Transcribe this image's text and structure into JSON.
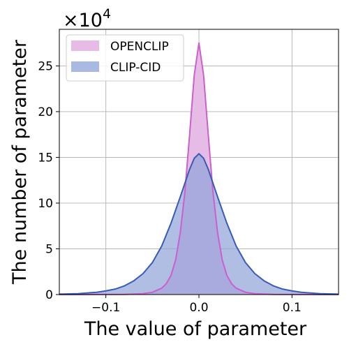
{
  "chart_data": {
    "type": "area",
    "title": "",
    "xlabel": "The value of parameter",
    "ylabel": "The number of parameter",
    "y_multiplier_text": "×10",
    "y_multiplier_exp": "4",
    "xlim": [
      -0.15,
      0.15
    ],
    "ylim": [
      0,
      29
    ],
    "x_ticks": [
      -0.1,
      0.0,
      0.1
    ],
    "x_tick_labels": [
      "−0.1",
      "0.0",
      "0.1"
    ],
    "y_ticks": [
      0,
      5,
      10,
      15,
      20,
      25
    ],
    "y_tick_labels": [
      "0",
      "5",
      "10",
      "15",
      "20",
      "25"
    ],
    "grid": true,
    "legend_position": "top-left",
    "series": [
      {
        "name": "OPENCLIP",
        "fill_color": "#e6bce6",
        "line_color": "#cc5fcc",
        "x": [
          -0.15,
          -0.08,
          -0.06,
          -0.05,
          -0.04,
          -0.035,
          -0.03,
          -0.025,
          -0.02,
          -0.015,
          -0.01,
          -0.005,
          0.0,
          0.005,
          0.01,
          0.015,
          0.02,
          0.025,
          0.03,
          0.035,
          0.04,
          0.05,
          0.06,
          0.08,
          0.15
        ],
        "values": [
          0,
          0.02,
          0.1,
          0.25,
          0.7,
          1.2,
          2.1,
          3.8,
          6.8,
          11.3,
          17.5,
          24.0,
          27.5,
          24.0,
          17.5,
          11.3,
          6.8,
          3.8,
          2.1,
          1.2,
          0.7,
          0.25,
          0.1,
          0.02,
          0
        ]
      },
      {
        "name": "CLIP-CID",
        "fill_color": "#8ea3d9",
        "line_color": "#3a5bb5",
        "x": [
          -0.15,
          -0.13,
          -0.11,
          -0.1,
          -0.09,
          -0.08,
          -0.07,
          -0.06,
          -0.05,
          -0.04,
          -0.03,
          -0.02,
          -0.01,
          -0.005,
          0.0,
          0.005,
          0.01,
          0.02,
          0.03,
          0.04,
          0.05,
          0.06,
          0.07,
          0.08,
          0.09,
          0.1,
          0.11,
          0.13,
          0.15
        ],
        "values": [
          0.05,
          0.1,
          0.25,
          0.4,
          0.6,
          0.95,
          1.5,
          2.3,
          3.5,
          5.3,
          7.8,
          10.7,
          13.7,
          14.9,
          15.4,
          14.9,
          13.7,
          10.7,
          7.8,
          5.3,
          3.5,
          2.3,
          1.5,
          0.95,
          0.6,
          0.4,
          0.25,
          0.1,
          0.05
        ]
      }
    ]
  }
}
